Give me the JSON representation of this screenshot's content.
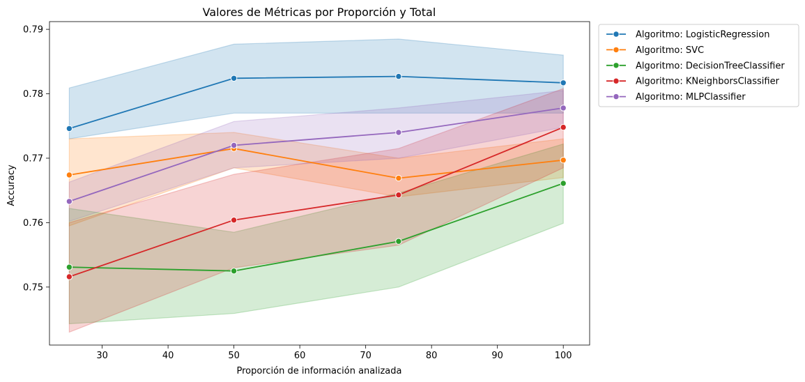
{
  "chart_data": {
    "type": "line",
    "title": "Valores de Métricas por Proporción y Total",
    "xlabel": "Proporción de información analizada",
    "ylabel": "Accuracy",
    "xlim": [
      22,
      104
    ],
    "ylim": [
      0.741,
      0.7912
    ],
    "xticks": [
      30,
      40,
      50,
      60,
      70,
      80,
      90,
      100
    ],
    "xtick_labels": [
      "30",
      "40",
      "50",
      "60",
      "70",
      "80",
      "90",
      "100"
    ],
    "yticks": [
      0.75,
      0.76,
      0.77,
      0.78,
      0.79
    ],
    "ytick_labels": [
      "0.75",
      "0.76",
      "0.77",
      "0.78",
      "0.79"
    ],
    "x": [
      25,
      50,
      75,
      100
    ],
    "grid": false,
    "legend_position": "outside-top-right",
    "series": [
      {
        "name": "Algoritmo: LogisticRegression",
        "color": "#1f77b4",
        "values": [
          0.7746,
          0.7824,
          0.7827,
          0.7817
        ],
        "lower": [
          0.773,
          0.777,
          0.777,
          0.777
        ],
        "upper": [
          0.7809,
          0.7877,
          0.7885,
          0.786
        ]
      },
      {
        "name": "Algoritmo: SVC",
        "color": "#ff7f0e",
        "values": [
          0.7674,
          0.7715,
          0.7669,
          0.7697
        ],
        "lower": [
          0.7595,
          0.7685,
          0.764,
          0.767
        ],
        "upper": [
          0.773,
          0.774,
          0.77,
          0.773
        ]
      },
      {
        "name": "Algoritmo: DecisionTreeClassifier",
        "color": "#2ca02c",
        "values": [
          0.7531,
          0.7525,
          0.7571,
          0.7661
        ],
        "lower": [
          0.7443,
          0.7459,
          0.75,
          0.7599
        ],
        "upper": [
          0.7622,
          0.7585,
          0.7646,
          0.7722
        ]
      },
      {
        "name": "Algoritmo: KNeighborsClassifier",
        "color": "#d62728",
        "values": [
          0.7516,
          0.7604,
          0.7643,
          0.7748
        ],
        "lower": [
          0.743,
          0.753,
          0.7565,
          0.7685
        ],
        "upper": [
          0.76,
          0.7675,
          0.7715,
          0.7808
        ]
      },
      {
        "name": "Algoritmo: MLPClassifier",
        "color": "#9467bd",
        "values": [
          0.7633,
          0.772,
          0.774,
          0.7778
        ],
        "lower": [
          0.7602,
          0.7685,
          0.77,
          0.7748
        ],
        "upper": [
          0.7663,
          0.7757,
          0.7778,
          0.7805
        ]
      }
    ]
  }
}
